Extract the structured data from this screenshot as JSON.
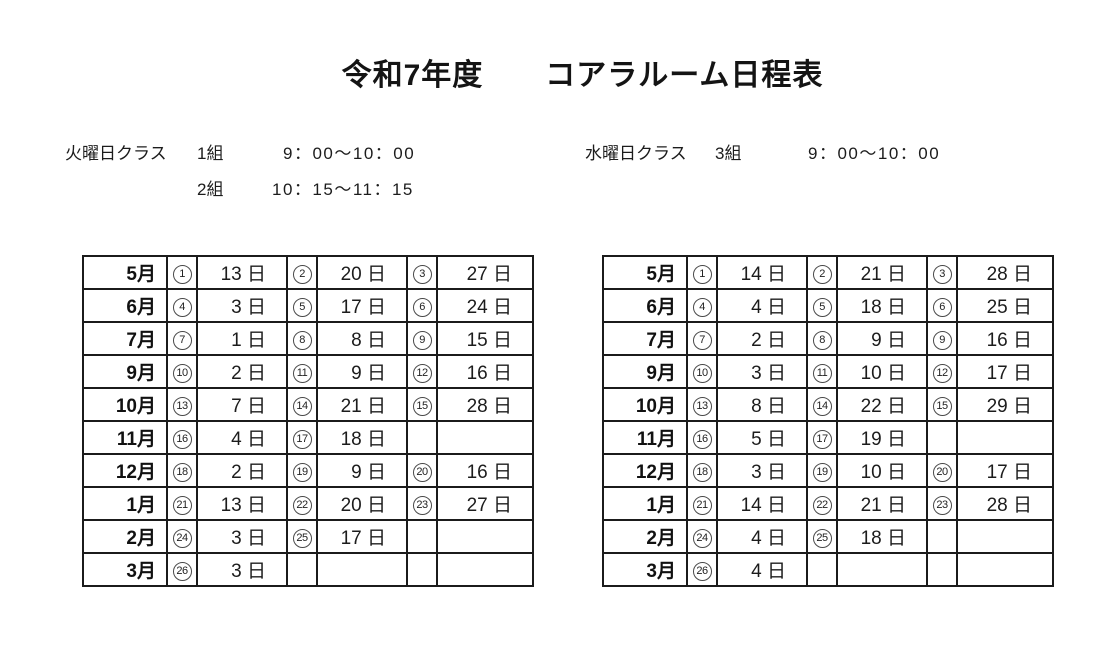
{
  "page": {
    "title": "令和7年度　　コアラルーム日程表",
    "background_color": "#ffffff",
    "border_color": "#1b1b1b"
  },
  "header": {
    "tuesday": {
      "day_label": "火曜日クラス",
      "lines": [
        {
          "group": "1組",
          "time": "9：00～10：00"
        },
        {
          "group": "2組",
          "time": "10：15～11：15"
        }
      ]
    },
    "wednesday": {
      "day_label": "水曜日クラス",
      "lines": [
        {
          "group": "3組",
          "time": "9：00～10：00"
        }
      ]
    }
  },
  "tables": {
    "left": {
      "name": "tuesday-class-schedule",
      "rows": [
        {
          "month": "5月",
          "slots": [
            {
              "no": 1,
              "date": "13 日"
            },
            {
              "no": 2,
              "date": "20 日"
            },
            {
              "no": 3,
              "date": "27 日"
            }
          ]
        },
        {
          "month": "6月",
          "slots": [
            {
              "no": 4,
              "date": "3 日"
            },
            {
              "no": 5,
              "date": "17 日"
            },
            {
              "no": 6,
              "date": "24 日"
            }
          ]
        },
        {
          "month": "7月",
          "slots": [
            {
              "no": 7,
              "date": "1 日"
            },
            {
              "no": 8,
              "date": "8 日"
            },
            {
              "no": 9,
              "date": "15 日"
            }
          ]
        },
        {
          "month": "9月",
          "slots": [
            {
              "no": 10,
              "date": "2 日"
            },
            {
              "no": 11,
              "date": "9 日"
            },
            {
              "no": 12,
              "date": "16 日"
            }
          ]
        },
        {
          "month": "10月",
          "slots": [
            {
              "no": 13,
              "date": "7 日"
            },
            {
              "no": 14,
              "date": "21 日"
            },
            {
              "no": 15,
              "date": "28 日"
            }
          ]
        },
        {
          "month": "11月",
          "slots": [
            {
              "no": 16,
              "date": "4 日"
            },
            {
              "no": 17,
              "date": "18 日"
            },
            {}
          ]
        },
        {
          "month": "12月",
          "slots": [
            {
              "no": 18,
              "date": "2 日"
            },
            {
              "no": 19,
              "date": "9 日"
            },
            {
              "no": 20,
              "date": "16 日"
            }
          ]
        },
        {
          "month": "1月",
          "slots": [
            {
              "no": 21,
              "date": "13 日"
            },
            {
              "no": 22,
              "date": "20 日"
            },
            {
              "no": 23,
              "date": "27 日"
            }
          ]
        },
        {
          "month": "2月",
          "slots": [
            {
              "no": 24,
              "date": "3 日"
            },
            {
              "no": 25,
              "date": "17 日"
            },
            {}
          ]
        },
        {
          "month": "3月",
          "slots": [
            {
              "no": 26,
              "date": "3 日"
            },
            {},
            {}
          ]
        }
      ]
    },
    "right": {
      "name": "wednesday-class-schedule",
      "rows": [
        {
          "month": "5月",
          "slots": [
            {
              "no": 1,
              "date": "14 日"
            },
            {
              "no": 2,
              "date": "21 日"
            },
            {
              "no": 3,
              "date": "28 日"
            }
          ]
        },
        {
          "month": "6月",
          "slots": [
            {
              "no": 4,
              "date": "4 日"
            },
            {
              "no": 5,
              "date": "18 日"
            },
            {
              "no": 6,
              "date": "25 日"
            }
          ]
        },
        {
          "month": "7月",
          "slots": [
            {
              "no": 7,
              "date": "2 日"
            },
            {
              "no": 8,
              "date": "9 日"
            },
            {
              "no": 9,
              "date": "16 日"
            }
          ]
        },
        {
          "month": "9月",
          "slots": [
            {
              "no": 10,
              "date": "3 日"
            },
            {
              "no": 11,
              "date": "10 日"
            },
            {
              "no": 12,
              "date": "17 日"
            }
          ]
        },
        {
          "month": "10月",
          "slots": [
            {
              "no": 13,
              "date": "8 日"
            },
            {
              "no": 14,
              "date": "22 日"
            },
            {
              "no": 15,
              "date": "29 日"
            }
          ]
        },
        {
          "month": "11月",
          "slots": [
            {
              "no": 16,
              "date": "5 日"
            },
            {
              "no": 17,
              "date": "19 日"
            },
            {}
          ]
        },
        {
          "month": "12月",
          "slots": [
            {
              "no": 18,
              "date": "3 日"
            },
            {
              "no": 19,
              "date": "10 日"
            },
            {
              "no": 20,
              "date": "17 日"
            }
          ]
        },
        {
          "month": "1月",
          "slots": [
            {
              "no": 21,
              "date": "14 日"
            },
            {
              "no": 22,
              "date": "21 日"
            },
            {
              "no": 23,
              "date": "28 日"
            }
          ]
        },
        {
          "month": "2月",
          "slots": [
            {
              "no": 24,
              "date": "4 日"
            },
            {
              "no": 25,
              "date": "18 日"
            },
            {}
          ]
        },
        {
          "month": "3月",
          "slots": [
            {
              "no": 26,
              "date": "4 日"
            },
            {},
            {}
          ]
        }
      ]
    }
  }
}
